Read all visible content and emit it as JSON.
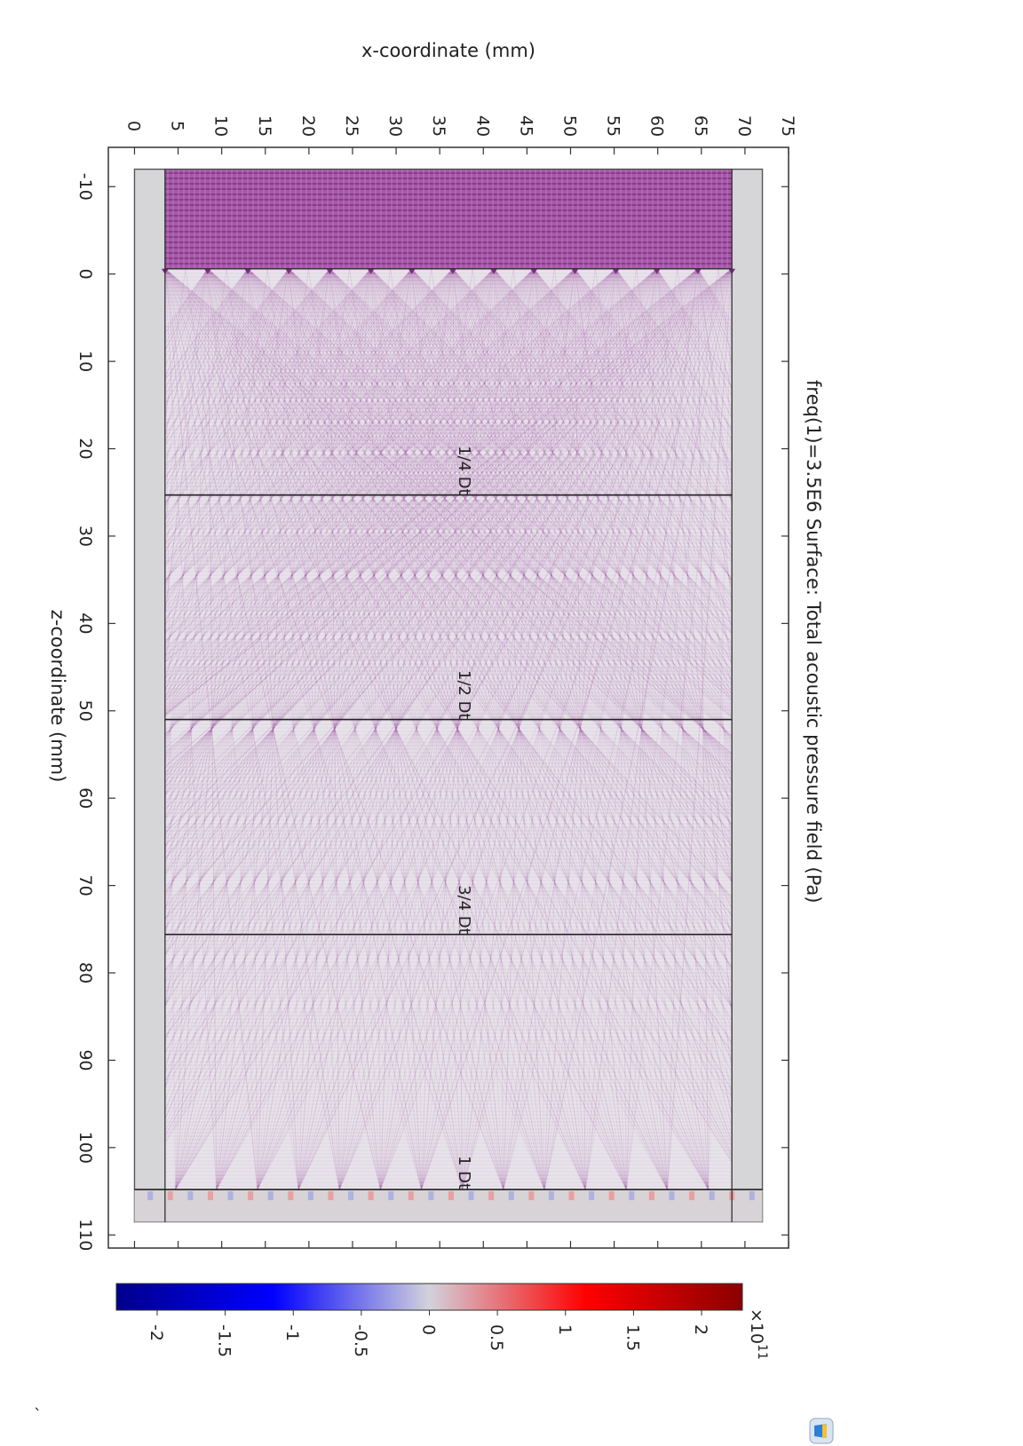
{
  "chart_data": {
    "type": "heatmap",
    "title": "freq(1)=3.5E6   Surface: Total acoustic pressure field (Pa)",
    "x_axis": {
      "label": "x-coordinate (mm)",
      "range": [
        -3,
        75
      ],
      "ticks": [
        0,
        5,
        10,
        15,
        20,
        25,
        30,
        35,
        40,
        45,
        50,
        55,
        60,
        65,
        70,
        75
      ]
    },
    "z_axis": {
      "label": "z-coordinate (mm)",
      "range": [
        -14.5,
        111.5
      ],
      "ticks": [
        -10,
        0,
        10,
        20,
        30,
        40,
        50,
        60,
        70,
        80,
        90,
        100,
        110
      ]
    },
    "domain": {
      "outer_x": [
        0,
        72
      ],
      "outer_z": [
        -12,
        108.5
      ],
      "inner_x": [
        3.5,
        68.5
      ],
      "inner_z": [
        -12,
        108.5
      ],
      "transducer_z": [
        -12,
        -0.6
      ],
      "element_x": [
        3.5,
        8.4,
        13.0,
        17.7,
        22.4,
        27.1,
        31.8,
        36.5,
        41.2,
        45.8,
        50.5,
        55.2,
        59.9,
        64.6,
        68.5
      ],
      "far_boundary_z": 104.8
    },
    "annotations": [
      {
        "text": "1/4 Dt",
        "z": 25.3
      },
      {
        "text": "1/2 Dt",
        "z": 51.0
      },
      {
        "text": "3/4 Dt",
        "z": 75.6
      },
      {
        "text": "1 Dt",
        "z": 104.8
      }
    ],
    "colorbar": {
      "range": [
        -2.3,
        2.3
      ],
      "ticks": [
        -2,
        -1.5,
        -1,
        -0.5,
        0,
        0.5,
        1,
        1.5,
        2
      ],
      "tick_labels": [
        "-2",
        "-1.5",
        "-1",
        "-0.5",
        "0",
        "0.5",
        "1",
        "1.5",
        "2"
      ],
      "multiplier_base": "×10",
      "multiplier_exp": "11",
      "colors": [
        "#00008c",
        "#0000ff",
        "#d2d2dc",
        "#ff0000",
        "#8c0000"
      ]
    },
    "stray_mark": "`"
  }
}
